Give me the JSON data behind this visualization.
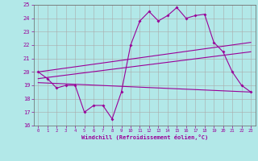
{
  "bg_color": "#b2e8e8",
  "grid_color": "#aaaaaa",
  "line_color": "#990099",
  "spine_color": "#666666",
  "xlim": [
    -0.5,
    23.5
  ],
  "ylim": [
    16,
    25
  ],
  "yticks": [
    16,
    17,
    18,
    19,
    20,
    21,
    22,
    23,
    24,
    25
  ],
  "xticks": [
    0,
    1,
    2,
    3,
    4,
    5,
    6,
    7,
    8,
    9,
    10,
    11,
    12,
    13,
    14,
    15,
    16,
    17,
    18,
    19,
    20,
    21,
    22,
    23
  ],
  "xlabel": "Windchill (Refroidissement éolien,°C)",
  "series1_x": [
    0,
    1,
    2,
    3,
    4,
    5,
    6,
    7,
    8,
    9,
    10,
    11,
    12,
    13,
    14,
    15,
    16,
    17,
    18,
    19,
    20,
    21,
    22,
    23
  ],
  "series1_y": [
    20.0,
    19.5,
    18.8,
    19.0,
    19.0,
    17.0,
    17.5,
    17.5,
    16.5,
    18.5,
    22.0,
    23.8,
    24.5,
    23.8,
    24.2,
    24.8,
    24.0,
    24.2,
    24.3,
    22.2,
    21.5,
    20.0,
    19.0,
    18.5
  ],
  "series2_x": [
    0,
    23
  ],
  "series2_y": [
    20.0,
    22.2
  ],
  "series3_x": [
    0,
    23
  ],
  "series3_y": [
    19.5,
    21.5
  ],
  "series4_x": [
    0,
    23
  ],
  "series4_y": [
    19.2,
    18.5
  ]
}
